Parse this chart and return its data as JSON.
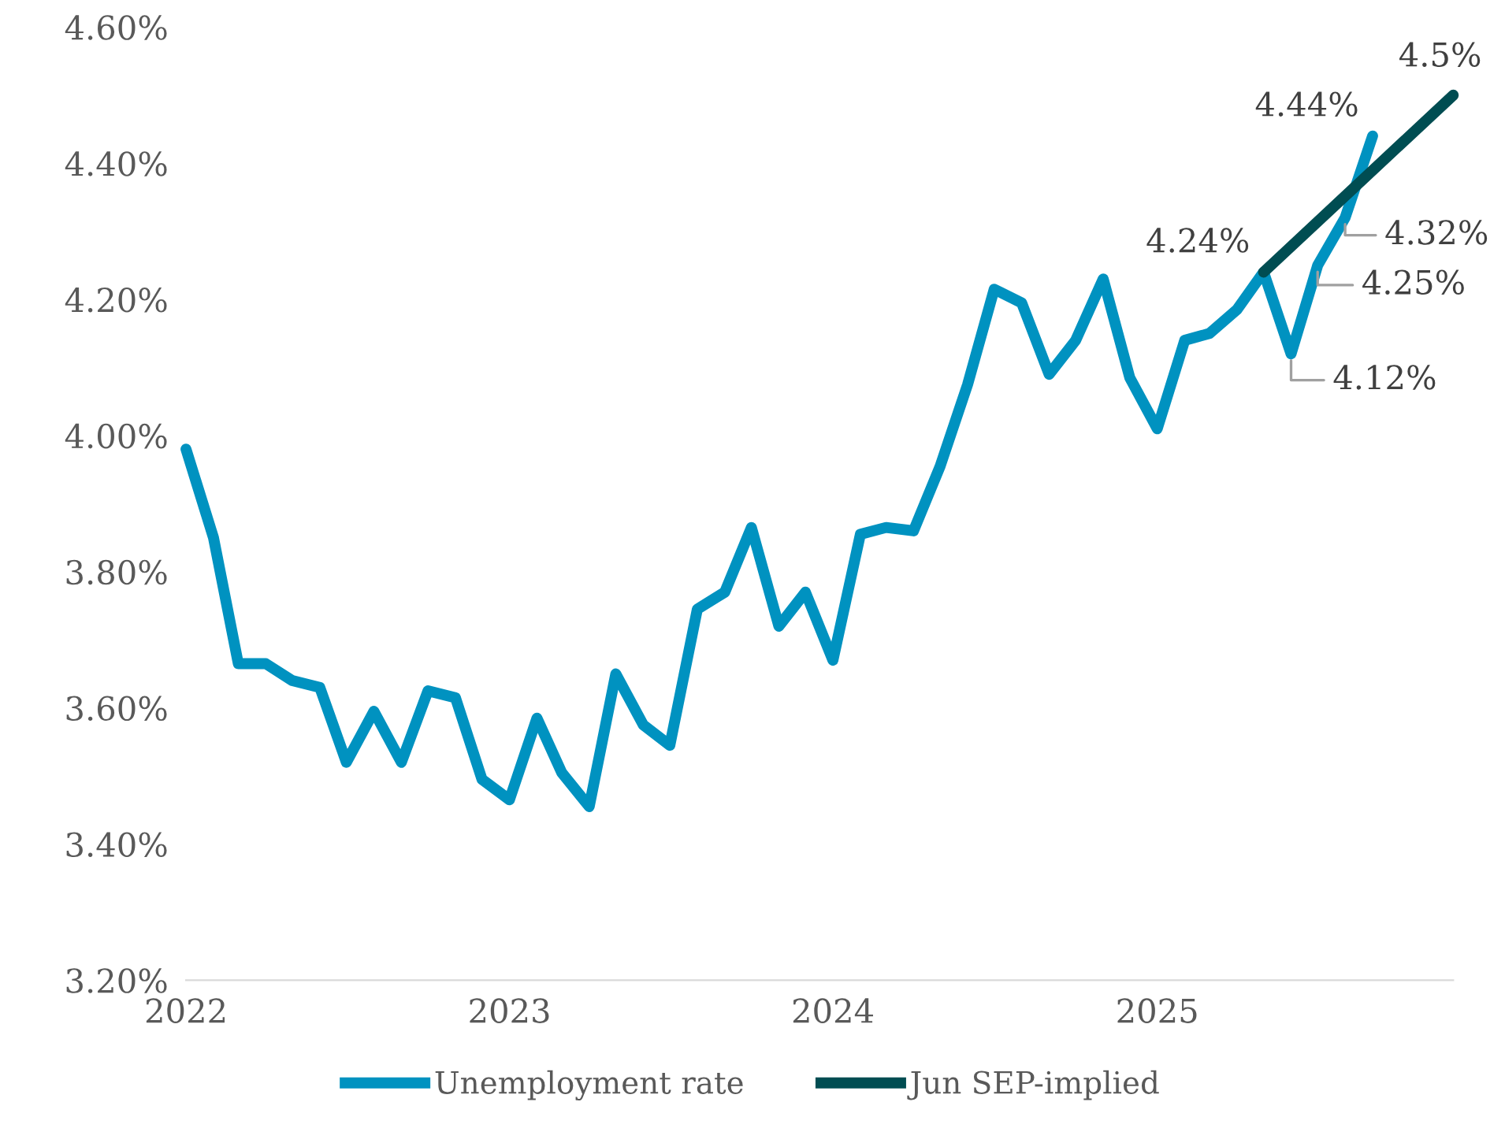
{
  "chart_data": {
    "type": "line",
    "x": [
      "2022-01",
      "2022-02",
      "2022-03",
      "2022-04",
      "2022-05",
      "2022-06",
      "2022-07",
      "2022-08",
      "2022-09",
      "2022-10",
      "2022-11",
      "2022-12",
      "2023-01",
      "2023-02",
      "2023-03",
      "2023-04",
      "2023-05",
      "2023-06",
      "2023-07",
      "2023-08",
      "2023-09",
      "2023-10",
      "2023-11",
      "2023-12",
      "2024-01",
      "2024-02",
      "2024-03",
      "2024-04",
      "2024-05",
      "2024-06",
      "2024-07",
      "2024-08",
      "2024-09",
      "2024-10",
      "2024-11",
      "2024-12",
      "2025-01",
      "2025-02",
      "2025-03",
      "2025-04",
      "2025-05",
      "2025-06",
      "2025-07",
      "2025-08",
      "2025-09"
    ],
    "series": [
      {
        "name": "Unemployment rate",
        "color": "#0092c0",
        "values": [
          3.98,
          3.85,
          3.665,
          3.665,
          3.64,
          3.63,
          3.52,
          3.595,
          3.52,
          3.625,
          3.615,
          3.495,
          3.465,
          3.585,
          3.505,
          3.455,
          3.65,
          3.575,
          3.545,
          3.745,
          3.77,
          3.865,
          3.72,
          3.77,
          3.67,
          3.855,
          3.865,
          3.86,
          3.955,
          4.075,
          4.215,
          4.195,
          4.09,
          4.14,
          4.23,
          4.085,
          4.01,
          4.14,
          4.15,
          4.185,
          4.24,
          4.12,
          4.25,
          4.32,
          4.44
        ],
        "value_labels": [
          null,
          null,
          null,
          null,
          null,
          null,
          null,
          null,
          null,
          null,
          null,
          null,
          null,
          null,
          null,
          null,
          null,
          null,
          null,
          null,
          null,
          null,
          null,
          null,
          null,
          null,
          null,
          null,
          null,
          null,
          null,
          null,
          null,
          null,
          null,
          null,
          null,
          null,
          null,
          null,
          null,
          "4.12%",
          "4.25%",
          "4.32%",
          "4.44%"
        ]
      },
      {
        "name": "Jun SEP-implied",
        "color": "#004d52",
        "x": [
          "2025-05",
          "2025-12"
        ],
        "values": [
          4.24,
          4.5
        ],
        "value_labels": [
          "4.24%",
          "4.5%"
        ]
      }
    ],
    "xticks": [
      {
        "value": "2022-01",
        "label": "2022"
      },
      {
        "value": "2023-01",
        "label": "2023"
      },
      {
        "value": "2024-01",
        "label": "2024"
      },
      {
        "value": "2025-01",
        "label": "2025"
      }
    ],
    "xlim": [
      "2022-01",
      "2025-12"
    ],
    "ylim": [
      3.2,
      4.6
    ],
    "yticks": [
      {
        "value": 3.2,
        "label": "3.20%"
      },
      {
        "value": 3.4,
        "label": "3.40%"
      },
      {
        "value": 3.6,
        "label": "3.60%"
      },
      {
        "value": 3.8,
        "label": "3.80%"
      },
      {
        "value": 4.0,
        "label": "4.00%"
      },
      {
        "value": 4.2,
        "label": "4.20%"
      },
      {
        "value": 4.4,
        "label": "4.40%"
      },
      {
        "value": 4.6,
        "label": "4.60%"
      }
    ],
    "grid": false,
    "legend": "bottom",
    "line_style": "solid",
    "marker": "none"
  }
}
